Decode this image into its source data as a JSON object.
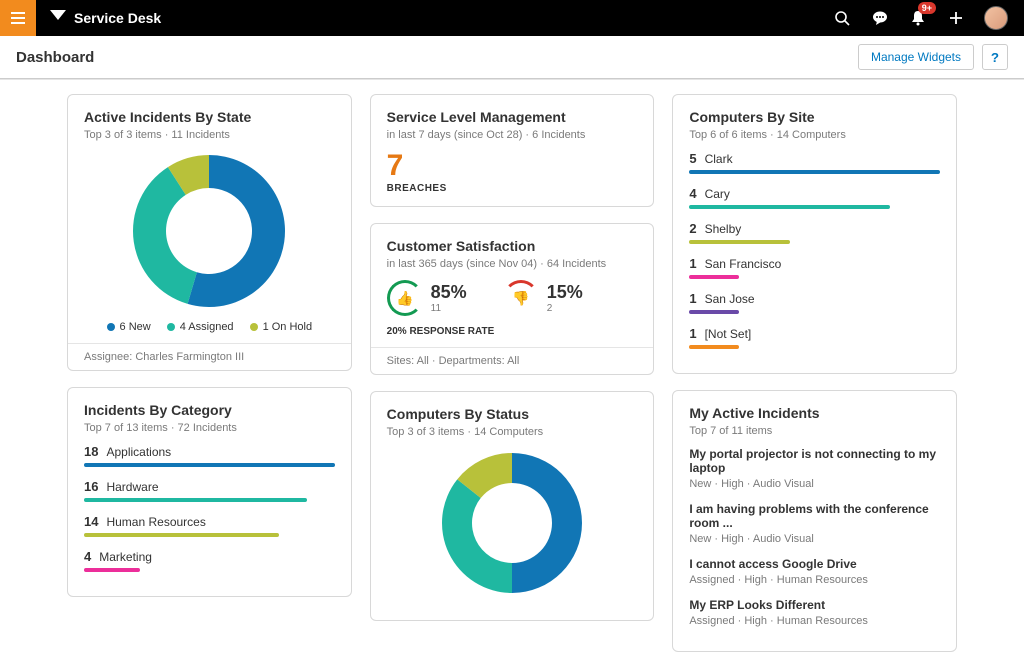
{
  "topbar": {
    "brand": "Service Desk",
    "notification_badge": "9+"
  },
  "subbar": {
    "title": "Dashboard",
    "manage_widgets": "Manage Widgets",
    "help": "?"
  },
  "colors": {
    "blue": "#1176b5",
    "teal": "#1fb8a1",
    "olive": "#b8c13a",
    "orange": "#f28b1e",
    "pink": "#ec2e9a",
    "purple": "#6a4aa8"
  },
  "active_incidents": {
    "title": "Active Incidents By State",
    "sub": "Top 3 of 3 items  ·  11 Incidents",
    "donut": {
      "outer_r": 76,
      "inner_r": 43,
      "segments": [
        {
          "label": "6 New",
          "value": 6,
          "color": "#1176b5"
        },
        {
          "label": "4 Assigned",
          "value": 4,
          "color": "#1fb8a1"
        },
        {
          "label": "1 On Hold",
          "value": 1,
          "color": "#b8c13a"
        }
      ]
    },
    "footer": "Assignee: Charles Farmington III"
  },
  "incidents_by_category": {
    "title": "Incidents By Category",
    "sub": "Top 7 of 13 items  ·  72 Incidents",
    "max": 18,
    "rows": [
      {
        "count": 18,
        "label": "Applications",
        "color": "#1176b5"
      },
      {
        "count": 16,
        "label": "Hardware",
        "color": "#1fb8a1"
      },
      {
        "count": 14,
        "label": "Human Resources",
        "color": "#b8c13a"
      },
      {
        "count": 4,
        "label": "Marketing",
        "color": "#ec2e9a"
      }
    ]
  },
  "slm": {
    "title": "Service Level Management",
    "sub": "in last 7 days (since Oct 28)  ·  6 Incidents",
    "breaches_num": "7",
    "breaches_label": "BREACHES"
  },
  "csat": {
    "title": "Customer Satisfaction",
    "sub": "in last 365 days (since Nov 04)  ·  64 Incidents",
    "positive_pct": "85%",
    "positive_count": "11",
    "positive_color": "#139a52",
    "negative_pct": "15%",
    "negative_count": "2",
    "negative_color": "#d9372c",
    "response_rate": "20% RESPONSE RATE",
    "footer": "Sites: All  ·  Departments: All"
  },
  "computers_status": {
    "title": "Computers By Status",
    "sub": "Top 3 of 3 items  ·  14 Computers",
    "donut": {
      "outer_r": 70,
      "inner_r": 40,
      "segments": [
        {
          "value": 7,
          "color": "#1176b5"
        },
        {
          "value": 5,
          "color": "#1fb8a1"
        },
        {
          "value": 2,
          "color": "#b8c13a"
        }
      ]
    }
  },
  "computers_site": {
    "title": "Computers By Site",
    "sub": "Top 6 of 6 items  ·  14 Computers",
    "max": 5,
    "rows": [
      {
        "count": 5,
        "label": "Clark",
        "color": "#1176b5"
      },
      {
        "count": 4,
        "label": "Cary",
        "color": "#1fb8a1"
      },
      {
        "count": 2,
        "label": "Shelby",
        "color": "#b8c13a"
      },
      {
        "count": 1,
        "label": "San Francisco",
        "color": "#ec2e9a"
      },
      {
        "count": 1,
        "label": "San Jose",
        "color": "#6a4aa8"
      },
      {
        "count": 1,
        "label": "[Not Set]",
        "color": "#f28b1e"
      }
    ]
  },
  "my_incidents": {
    "title": "My Active Incidents",
    "sub": "Top 7 of 11 items",
    "rows": [
      {
        "title": "My portal projector is not connecting to my laptop",
        "meta": "New  ·  High  ·  Audio Visual"
      },
      {
        "title": "I am having problems with the conference room ...",
        "meta": "New  ·  High  ·  Audio Visual"
      },
      {
        "title": "I cannot access Google Drive",
        "meta": "Assigned  ·  High  ·  Human Resources"
      },
      {
        "title": "My ERP Looks Different",
        "meta": "Assigned  ·  High  ·  Human Resources"
      }
    ]
  }
}
